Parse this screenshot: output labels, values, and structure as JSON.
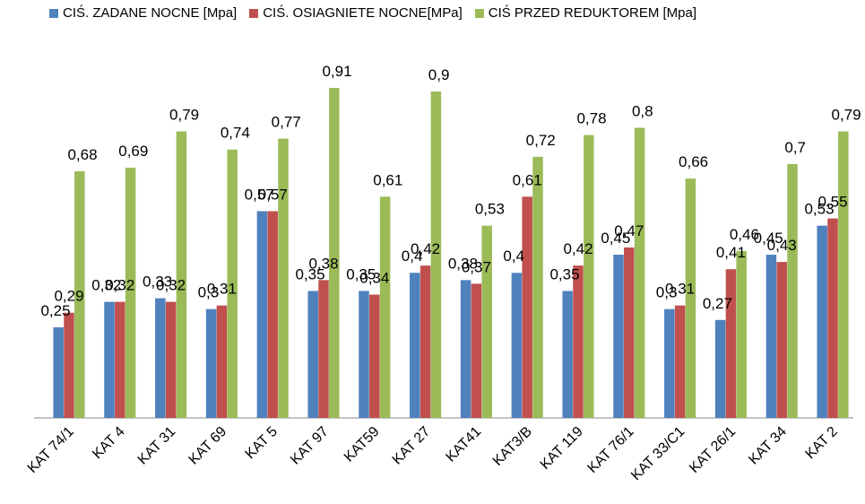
{
  "chart_data": {
    "type": "bar",
    "title": "",
    "xlabel": "",
    "ylabel": "",
    "ylim": [
      0,
      0.92
    ],
    "grid": false,
    "legend_position": "top",
    "categories": [
      "KAT 74/1",
      "KAT 4",
      "KAT 31",
      "KAT 69",
      "KAT 5",
      "KAT 97",
      "KAT59",
      "KAT 27",
      "KAT41",
      "KAT3/B",
      "KAT 119",
      "KAT 76/1",
      "KAT 33/C1",
      "KAT 26/1",
      "KAT 34",
      "KAT 2"
    ],
    "series": [
      {
        "name": "CIŚ. ZADANE NOCNE [Mpa]",
        "color": "#4F81BD",
        "values": [
          0.25,
          0.32,
          0.33,
          0.3,
          0.57,
          0.35,
          0.35,
          0.4,
          0.38,
          0.4,
          0.35,
          0.45,
          0.3,
          0.27,
          0.45,
          0.53
        ],
        "labels": [
          "0,25",
          "0,32",
          "0,33",
          "0,3",
          "0,57",
          "0,35",
          "0,35",
          "0,4",
          "0,38",
          "0,4",
          "0,35",
          "0,45",
          "0,3",
          "0,27",
          "0,45",
          "0,53"
        ]
      },
      {
        "name": "CIŚ. OSIAGNIETE NOCNE[MPa]",
        "color": "#C0504D",
        "values": [
          0.29,
          0.32,
          0.32,
          0.31,
          0.57,
          0.38,
          0.34,
          0.42,
          0.37,
          0.61,
          0.42,
          0.47,
          0.31,
          0.41,
          0.43,
          0.55
        ],
        "labels": [
          "0,29",
          "0,32",
          "0,32",
          "0,31",
          "0,57",
          "0,38",
          "0,34",
          "0,42",
          "0,37",
          "0,61",
          "0,42",
          "0,47",
          "0,31",
          "0,41",
          "0,43",
          "0,55"
        ]
      },
      {
        "name": "CIŚ PRZED REDUKTOREM [Mpa]",
        "color": "#9BBB59",
        "values": [
          0.68,
          0.69,
          0.79,
          0.74,
          0.77,
          0.91,
          0.61,
          0.9,
          0.53,
          0.72,
          0.78,
          0.8,
          0.66,
          0.46,
          0.7,
          0.79
        ],
        "labels": [
          "0,68",
          "0,69",
          "0,79",
          "0,74",
          "0,77",
          "0,91",
          "0,61",
          "0,9",
          "0,53",
          "0,72",
          "0,78",
          "0,8",
          "0,66",
          "0,46",
          "0,7",
          "0,79"
        ]
      }
    ]
  }
}
